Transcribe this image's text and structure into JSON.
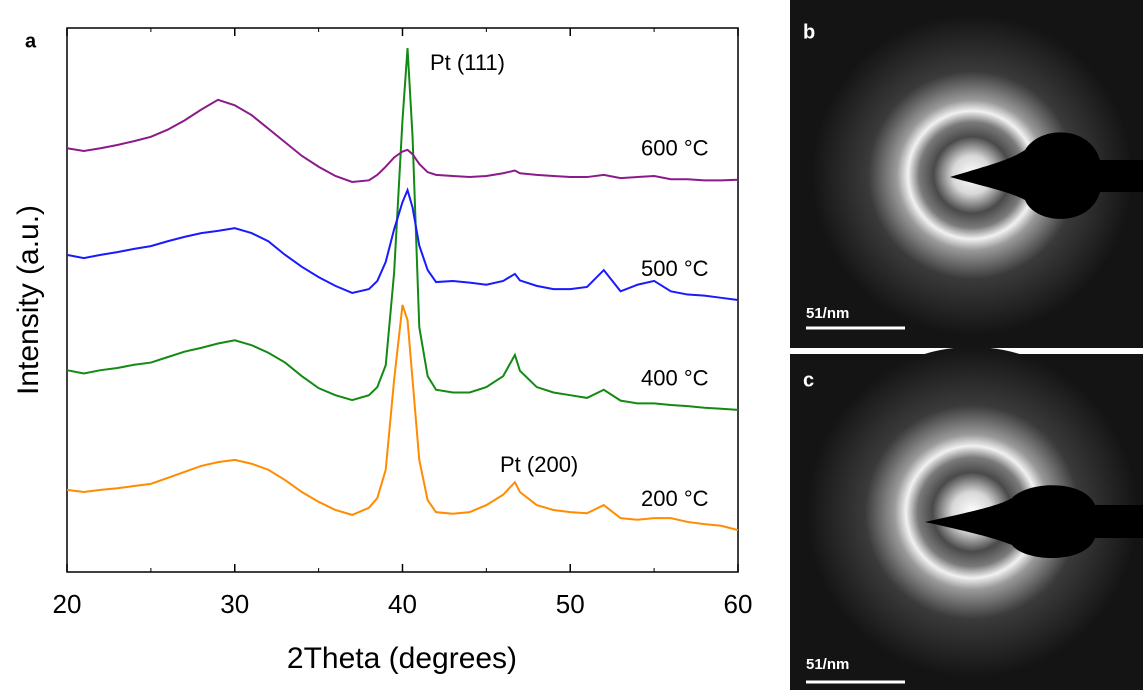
{
  "chart_data": {
    "type": "line",
    "x_label": "2Theta (degrees)",
    "y_label": "Intensity (a.u.)",
    "xlim": [
      20,
      60
    ],
    "xticks": [
      20,
      30,
      40,
      50,
      60
    ],
    "xminorticks": [
      25,
      35,
      45,
      55
    ],
    "ylim": [
      0,
      100
    ],
    "annotations": [
      "Pt (111)",
      "Pt (200)"
    ],
    "x": [
      20,
      21,
      22,
      23,
      24,
      25,
      26,
      27,
      28,
      29,
      30,
      31,
      32,
      33,
      34,
      35,
      36,
      37,
      38,
      38.5,
      39,
      39.5,
      40,
      40.3,
      40.6,
      41,
      41.5,
      42,
      43,
      44,
      45,
      46,
      46.7,
      47,
      48,
      49,
      50,
      51,
      52,
      53,
      54,
      55,
      56,
      57,
      58,
      59,
      60
    ],
    "series": [
      {
        "name": "200 °C",
        "color": "#ff8c00",
        "values": [
          15.1,
          14.7,
          15.1,
          15.4,
          15.8,
          16.2,
          17.3,
          18.4,
          19.5,
          20.2,
          20.6,
          19.9,
          18.8,
          16.9,
          14.7,
          12.9,
          11.4,
          10.5,
          11.8,
          13.6,
          18.8,
          35.3,
          49.1,
          46.3,
          35.3,
          20.6,
          13.2,
          11.0,
          10.7,
          11.0,
          12.3,
          14.2,
          16.5,
          14.7,
          12.3,
          11.4,
          11.0,
          10.8,
          12.3,
          9.9,
          9.6,
          9.9,
          9.9,
          9.2,
          8.8,
          8.5,
          7.7
        ]
      },
      {
        "name": "400 °C",
        "color": "#138a13",
        "values": [
          37.1,
          36.5,
          37.1,
          37.5,
          38.1,
          38.5,
          39.5,
          40.5,
          41.2,
          42.0,
          42.6,
          41.7,
          40.3,
          38.5,
          36.0,
          33.8,
          32.5,
          31.6,
          32.5,
          34.0,
          38.0,
          55.0,
          83.1,
          96.3,
          80.0,
          45.0,
          36.0,
          33.5,
          33.0,
          33.0,
          34.0,
          36.0,
          39.9,
          37.0,
          34.0,
          33.0,
          32.5,
          32.0,
          33.5,
          31.5,
          31.0,
          31.0,
          30.7,
          30.5,
          30.2,
          30.0,
          29.8
        ]
      },
      {
        "name": "500 °C",
        "color": "#1a1aff",
        "values": [
          58.3,
          57.7,
          58.3,
          58.8,
          59.4,
          59.9,
          60.8,
          61.6,
          62.3,
          62.7,
          63.2,
          62.3,
          60.8,
          58.3,
          56.1,
          54.2,
          52.6,
          51.3,
          52.0,
          53.5,
          57.0,
          63.0,
          68.0,
          70.2,
          67.0,
          60.0,
          55.5,
          53.3,
          53.5,
          53.2,
          52.8,
          53.5,
          54.8,
          53.6,
          52.6,
          52.0,
          52.0,
          52.4,
          55.5,
          51.6,
          52.8,
          53.5,
          51.6,
          51.0,
          50.8,
          50.4,
          50.0
        ]
      },
      {
        "name": "600 °C",
        "color": "#8b1a8b",
        "values": [
          77.9,
          77.4,
          77.9,
          78.5,
          79.2,
          80.0,
          81.3,
          83.0,
          85.0,
          86.8,
          85.8,
          84.0,
          81.5,
          79.0,
          76.5,
          74.5,
          72.8,
          71.7,
          72.0,
          73.0,
          74.5,
          76.2,
          77.3,
          77.6,
          76.8,
          75.0,
          73.5,
          73.0,
          72.8,
          72.6,
          72.8,
          73.3,
          73.8,
          73.3,
          73.0,
          72.8,
          72.6,
          72.6,
          73.0,
          72.4,
          72.6,
          72.8,
          72.2,
          72.2,
          72.0,
          72.0,
          72.1
        ]
      }
    ]
  },
  "figure": {
    "panels": [
      {
        "label": "a"
      },
      {
        "label": "b",
        "scale_bar": "51/nm"
      },
      {
        "label": "c",
        "scale_bar": "51/nm"
      }
    ]
  }
}
